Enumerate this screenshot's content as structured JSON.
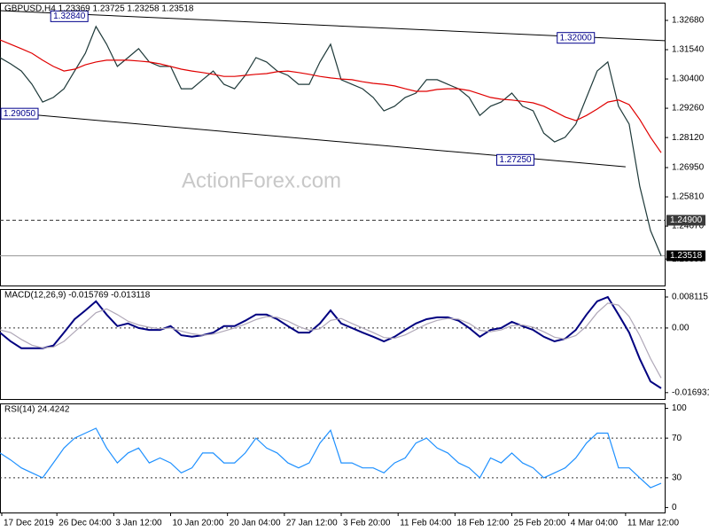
{
  "chart_data": [
    {
      "type": "line",
      "title": "GBPUSD,H4  1.23369 1.23725 1.23258 1.23518",
      "watermark": "ActionForex.com",
      "x": [
        0,
        6,
        12,
        18,
        24,
        30,
        36,
        42,
        48,
        54,
        60,
        66,
        72,
        78,
        84,
        90,
        96,
        102,
        108,
        114,
        120,
        126,
        132,
        138,
        144,
        150,
        156,
        162,
        168,
        174,
        180,
        186,
        192,
        198,
        204,
        210,
        216,
        222,
        228,
        234,
        240,
        246,
        252,
        258,
        264,
        270,
        276,
        282,
        288,
        294,
        300,
        306,
        312,
        318,
        324,
        330,
        336,
        342,
        348,
        354,
        360,
        366,
        372
      ],
      "xlim": [
        0,
        374
      ],
      "xticks": [
        {
          "value": 1,
          "label": "17 Dec 2019"
        },
        {
          "value": 32,
          "label": "26 Dec 04:00"
        },
        {
          "value": 64,
          "label": "3 Jan 12:00"
        },
        {
          "value": 96,
          "label": "10 Jan 20:00"
        },
        {
          "value": 128,
          "label": "20 Jan 04:00"
        },
        {
          "value": 160,
          "label": "27 Jan 12:00"
        },
        {
          "value": 192,
          "label": "3 Feb 20:00"
        },
        {
          "value": 224,
          "label": "11 Feb 04:00"
        },
        {
          "value": 256,
          "label": "18 Feb 12:00"
        },
        {
          "value": 288,
          "label": "25 Feb 20:00"
        },
        {
          "value": 320,
          "label": "4 Mar 04:00"
        },
        {
          "value": 352,
          "label": "11 Mar 12:00"
        }
      ],
      "ylim": [
        1.2236,
        1.3337
      ],
      "yticks": [
        {
          "value": 1.3268,
          "label": "1.32680"
        },
        {
          "value": 1.3154,
          "label": "1.31540"
        },
        {
          "value": 1.304,
          "label": "1.30400"
        },
        {
          "value": 1.2926,
          "label": "1.29260"
        },
        {
          "value": 1.2812,
          "label": "1.28120"
        },
        {
          "value": 1.2695,
          "label": "1.26950"
        },
        {
          "value": 1.2581,
          "label": "1.25810"
        },
        {
          "value": 1.2467,
          "label": "1.24670"
        },
        {
          "value": 1.2339,
          "label": "1.23390"
        }
      ],
      "series": [
        {
          "color": "#1f3a3a",
          "values": [
            1.3123,
            1.3099,
            1.3071,
            1.3019,
            1.295,
            1.2968,
            1.3002,
            1.3071,
            1.314,
            1.3244,
            1.3175,
            1.3089,
            1.3123,
            1.3158,
            1.3106,
            1.3089,
            1.3089,
            1.3002,
            1.3002,
            1.3037,
            1.3071,
            1.3019,
            1.3002,
            1.3054,
            1.3123,
            1.3106,
            1.3071,
            1.3054,
            1.3019,
            1.3019,
            1.3106,
            1.3175,
            1.3037,
            1.3019,
            1.3002,
            1.2968,
            1.2916,
            1.2934,
            1.2968,
            1.2985,
            1.3037,
            1.3037,
            1.3019,
            1.3002,
            1.2968,
            1.2898,
            1.2934,
            1.295,
            1.2985,
            1.2934,
            1.2916,
            1.2829,
            1.2795,
            1.2813,
            1.2864,
            1.2968,
            1.3071,
            1.3106,
            1.2934,
            1.2864,
            1.2622,
            1.245,
            1.23518
          ]
        },
        {
          "color": "#e00000",
          "values": [
            1.3192,
            1.3175,
            1.3158,
            1.314,
            1.3113,
            1.3089,
            1.3071,
            1.3078,
            1.3095,
            1.3106,
            1.3113,
            1.3113,
            1.3113,
            1.311,
            1.3106,
            1.3099,
            1.3089,
            1.3078,
            1.3071,
            1.3065,
            1.3058,
            1.305,
            1.305,
            1.3054,
            1.3058,
            1.3061,
            1.3068,
            1.3071,
            1.3065,
            1.3058,
            1.305,
            1.3044,
            1.304,
            1.3037,
            1.3029,
            1.3023,
            1.3019,
            1.3013,
            1.3002,
            1.2992,
            1.2992,
            1.2999,
            1.3002,
            1.3002,
            1.2995,
            1.2982,
            1.2968,
            1.2961,
            1.2958,
            1.2953,
            1.2947,
            1.2934,
            1.2913,
            1.2892,
            1.2878,
            1.2898,
            1.2923,
            1.295,
            1.2958,
            1.294,
            1.2882,
            1.2813,
            1.2753
          ]
        }
      ],
      "trendlines": [
        {
          "x": [
            0,
            374
          ],
          "y": [
            1.3306,
            1.3189
          ]
        },
        {
          "x": [
            0,
            352
          ],
          "y": [
            1.2912,
            1.2698
          ]
        }
      ],
      "annotations": [
        {
          "x": 39,
          "value": 1.3284,
          "label": "1.32840"
        },
        {
          "x": 324,
          "value": 1.32,
          "label": "1.32000"
        },
        {
          "x": 9,
          "value": 1.2905,
          "label": "1.29050"
        },
        {
          "x": 290,
          "value": 1.2725,
          "label": "1.27250"
        }
      ],
      "levels": [
        {
          "value": 1.249,
          "label": "1.24900",
          "style": "dashed"
        },
        {
          "value": 1.23518,
          "label": "1.23518",
          "style": "solid"
        }
      ]
    },
    {
      "type": "line",
      "title": "MACD(12,26,9) -0.015769 -0.013118",
      "ylim": [
        -0.0186,
        0.0102
      ],
      "yticks": [
        0.008115,
        {
          "value": 0,
          "label": "0.00"
        },
        -0.016931
      ],
      "series": [
        {
          "color": "#000080",
          "values": [
            -0.0012,
            -0.0035,
            -0.0053,
            -0.0053,
            -0.0053,
            -0.0046,
            -0.0012,
            0.0023,
            0.0046,
            0.007,
            0.0035,
            0.0005,
            0.0012,
            0,
            -0.0005,
            -0.0005,
            0.0005,
            -0.0019,
            -0.0023,
            -0.0019,
            -0.0012,
            0.0005,
            0.0005,
            0.0019,
            0.0035,
            0.0035,
            0.0023,
            0.0005,
            -0.0012,
            -0.0012,
            0.0012,
            0.0046,
            0.0012,
            0,
            -0.0012,
            -0.0023,
            -0.0035,
            -0.0023,
            -0.0005,
            0.0012,
            0.0023,
            0.0028,
            0.0028,
            0.0019,
            0,
            -0.0023,
            -0.0005,
            0,
            0.0016,
            0.0005,
            -0.0005,
            -0.0023,
            -0.0035,
            -0.0028,
            -0.0005,
            0.0035,
            0.007,
            0.0081,
            0.0035,
            -0.0012,
            -0.0081,
            -0.014,
            -0.0158
          ]
        },
        {
          "color": "#b0a8b8",
          "values": [
            -0.0005,
            -0.0012,
            -0.003,
            -0.0045,
            -0.0052,
            -0.005,
            -0.0035,
            -0.001,
            0.0015,
            0.004,
            0.005,
            0.0035,
            0.0018,
            0.0008,
            0.0002,
            -0.0002,
            0,
            -0.0008,
            -0.0015,
            -0.0019,
            -0.0016,
            -0.0008,
            0,
            0.001,
            0.0022,
            0.003,
            0.0028,
            0.0018,
            0.0004,
            -0.0006,
            -0.0002,
            0.002,
            0.0025,
            0.0012,
            0,
            -0.0012,
            -0.0025,
            -0.0027,
            -0.0018,
            -0.0004,
            0.001,
            0.002,
            0.0025,
            0.0023,
            0.0012,
            -0.0006,
            -0.001,
            -0.0005,
            0.0006,
            0.0008,
            0.0002,
            -0.001,
            -0.0024,
            -0.0029,
            -0.002,
            0.0005,
            0.004,
            0.0065,
            0.006,
            0.003,
            -0.002,
            -0.008,
            -0.0131
          ]
        }
      ],
      "levels": [
        {
          "value": 0,
          "style": "dotted"
        }
      ]
    },
    {
      "type": "line",
      "title": "RSI(14) 24.4242",
      "ylim": [
        -5,
        105
      ],
      "yticks": [
        100,
        70,
        30,
        0
      ],
      "series": [
        {
          "color": "#1e90ff",
          "values": [
            55,
            48,
            40,
            35,
            30,
            45,
            60,
            70,
            75,
            80,
            60,
            45,
            55,
            60,
            45,
            50,
            45,
            35,
            40,
            55,
            55,
            45,
            45,
            55,
            70,
            60,
            55,
            45,
            40,
            45,
            65,
            78,
            45,
            45,
            40,
            40,
            35,
            45,
            50,
            65,
            70,
            60,
            55,
            45,
            40,
            30,
            50,
            45,
            55,
            45,
            40,
            30,
            35,
            40,
            50,
            65,
            75,
            75,
            40,
            40,
            30,
            20,
            24.4242
          ]
        }
      ],
      "levels": [
        {
          "value": 70,
          "style": "dotted"
        },
        {
          "value": 30,
          "style": "dotted"
        }
      ]
    }
  ]
}
